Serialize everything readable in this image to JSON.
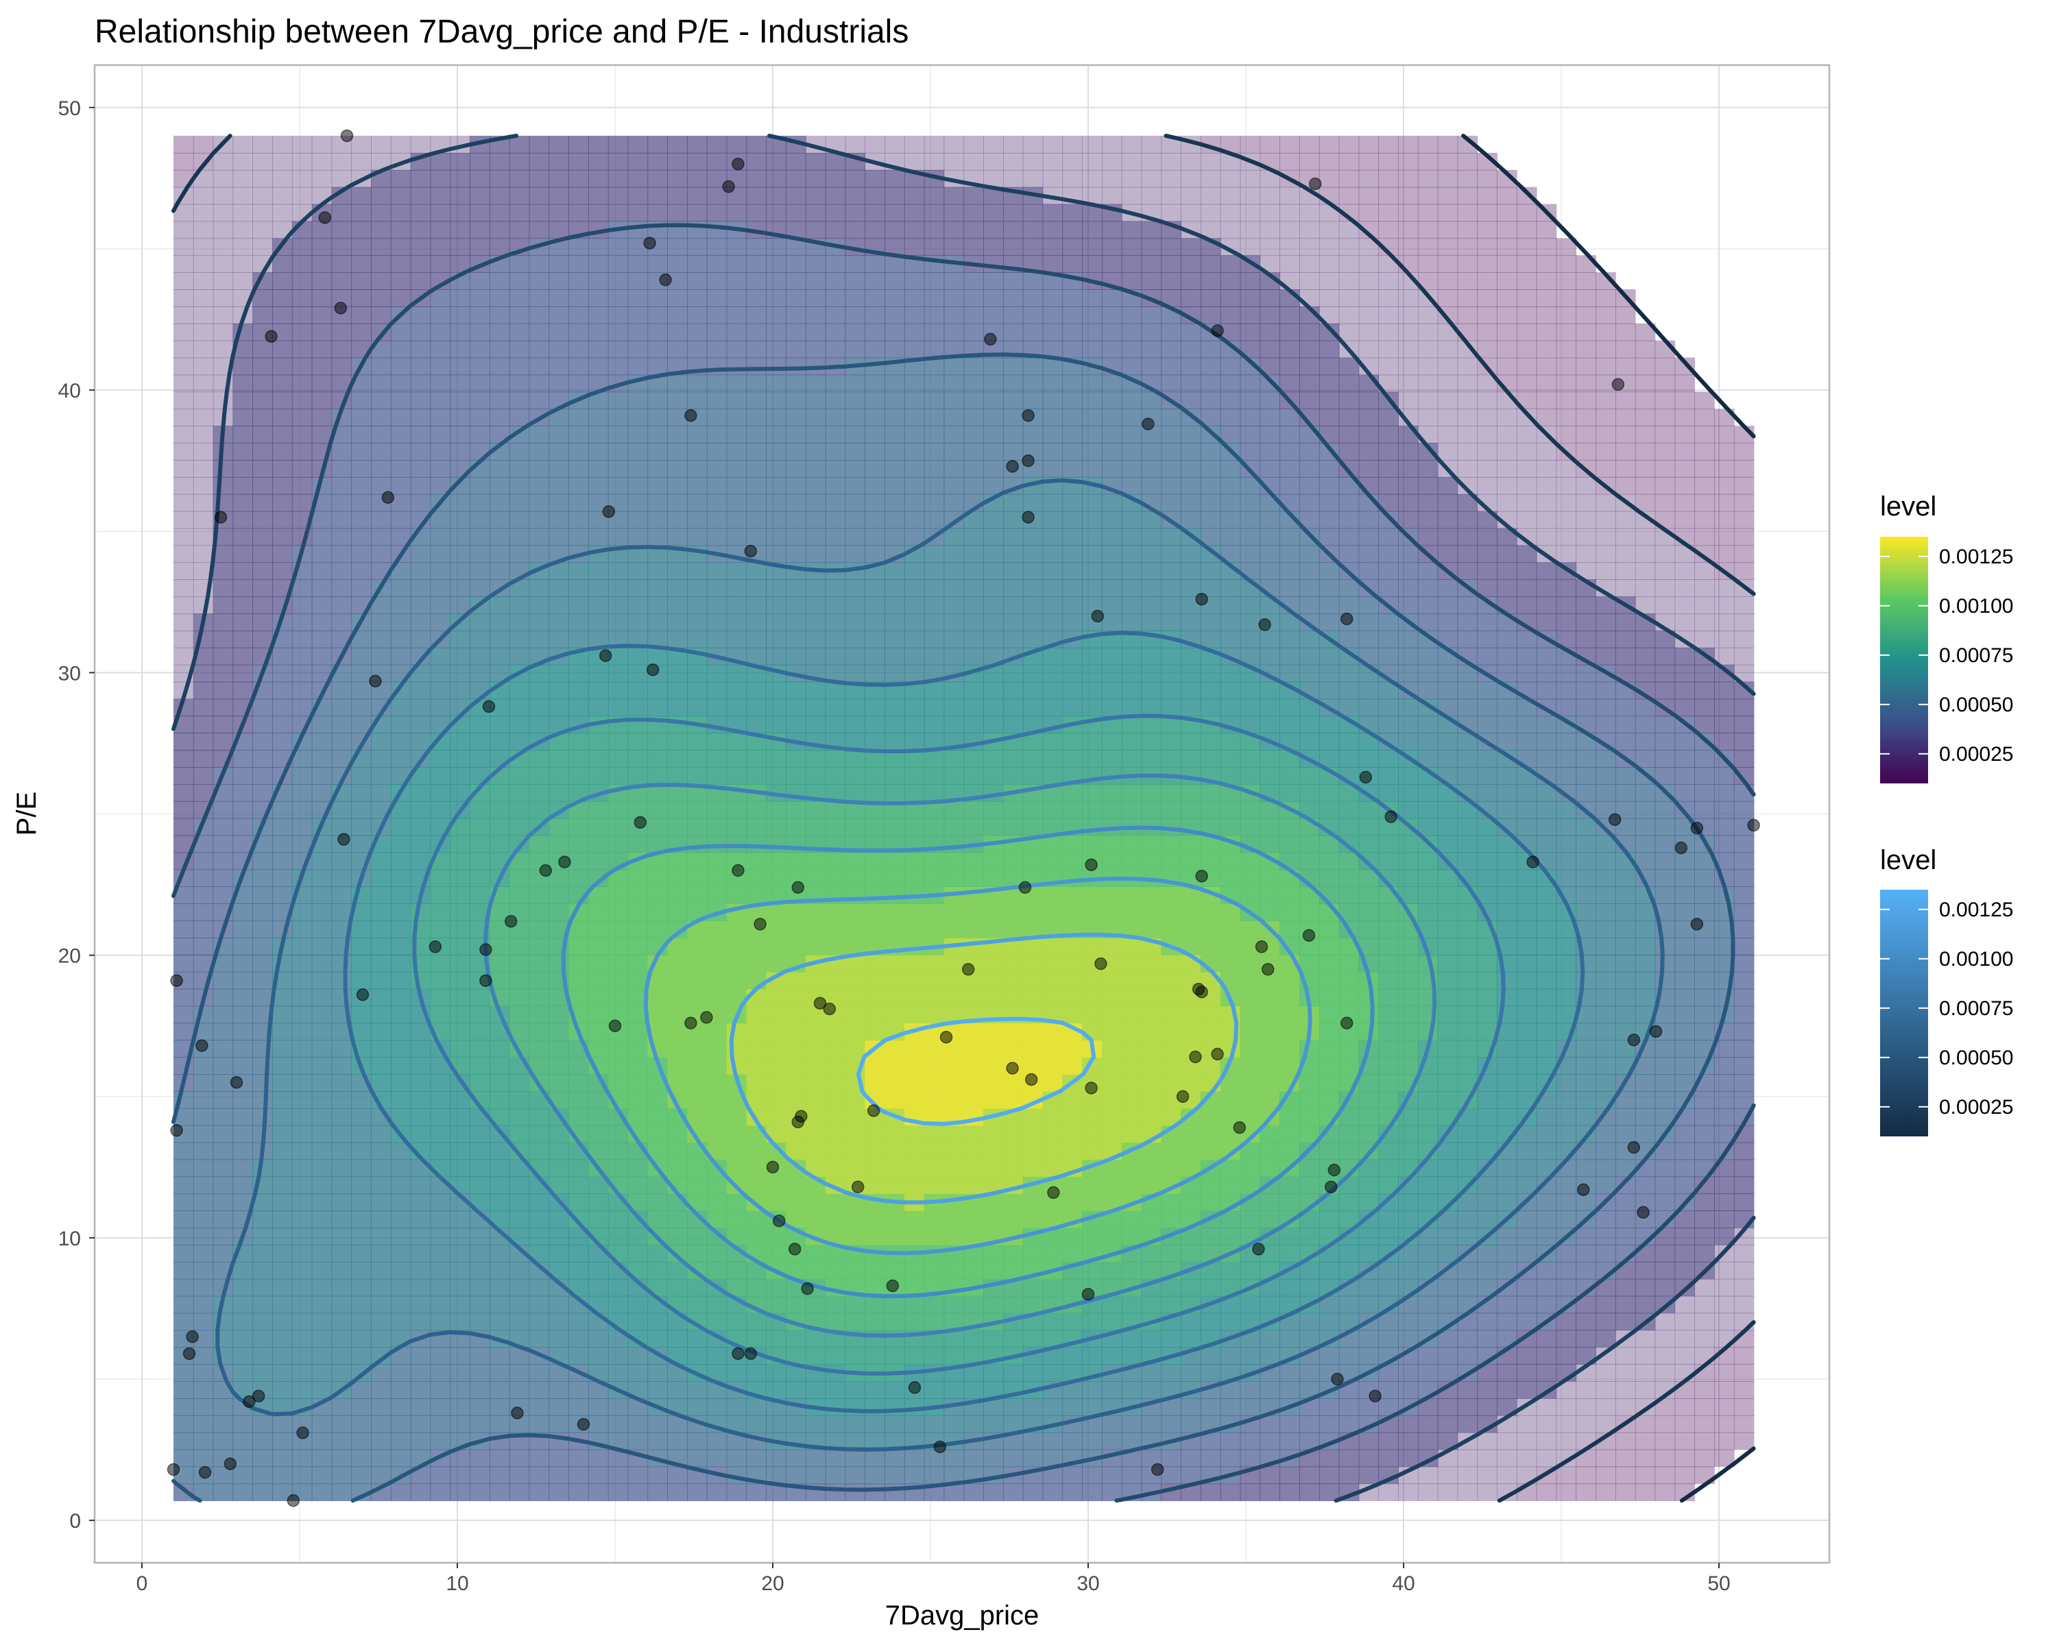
{
  "chart_data": {
    "type": "scatter",
    "subtype": "density-contour",
    "title": "Relationship between 7Davg_price and P/E - Industrials",
    "xlabel": "7Davg_price",
    "ylabel": "P/E",
    "xlim": [
      -1.5,
      53.5
    ],
    "ylim": [
      -1.5,
      51.5
    ],
    "xticks": [
      0,
      10,
      20,
      30,
      40,
      50
    ],
    "yticks": [
      0,
      10,
      20,
      30,
      40,
      50
    ],
    "grid": true,
    "legends": [
      {
        "title": "level",
        "palette": "viridis",
        "colors": [
          "#440154",
          "#3b528b",
          "#21918c",
          "#5ec962",
          "#fde725"
        ],
        "min": 0.0001,
        "max": 0.00135,
        "breaks": [
          0.00125,
          0.001,
          0.00075,
          0.0005,
          0.00025
        ],
        "labels": [
          "0.00125",
          "0.00100",
          "0.00075",
          "0.00050",
          "0.00025"
        ]
      },
      {
        "title": "level",
        "palette": "blues",
        "colors": [
          "#132b43",
          "#56b1f7"
        ],
        "min": 0.0001,
        "max": 0.00135,
        "breaks": [
          0.00125,
          0.001,
          0.00075,
          0.0005,
          0.00025
        ],
        "labels": [
          "0.00125",
          "0.00100",
          "0.00075",
          "0.00050",
          "0.00025"
        ]
      }
    ],
    "points": [
      [
        6.5,
        49
      ],
      [
        18.9,
        48
      ],
      [
        18.6,
        47.2
      ],
      [
        37.2,
        47.3
      ],
      [
        5.8,
        46.1
      ],
      [
        16.1,
        45.2
      ],
      [
        16.6,
        43.9
      ],
      [
        6.3,
        42.9
      ],
      [
        4.1,
        41.9
      ],
      [
        26.9,
        41.8
      ],
      [
        34.1,
        42.1
      ],
      [
        46.8,
        40.2
      ],
      [
        17.4,
        39.1
      ],
      [
        28.1,
        39.1
      ],
      [
        31.9,
        38.8
      ],
      [
        27.6,
        37.3
      ],
      [
        28.1,
        37.5
      ],
      [
        7.8,
        36.2
      ],
      [
        2.5,
        35.5
      ],
      [
        14.8,
        35.7
      ],
      [
        28.1,
        35.5
      ],
      [
        19.3,
        34.3
      ],
      [
        33.6,
        32.6
      ],
      [
        30.3,
        32
      ],
      [
        35.6,
        31.7
      ],
      [
        38.2,
        31.9
      ],
      [
        14.7,
        30.6
      ],
      [
        16.2,
        30.1
      ],
      [
        7.4,
        29.7
      ],
      [
        11.0,
        28.8
      ],
      [
        38.8,
        26.3
      ],
      [
        39.6,
        24.9
      ],
      [
        46.7,
        24.8
      ],
      [
        48.8,
        23.8
      ],
      [
        49.3,
        24.5
      ],
      [
        51.1,
        24.6
      ],
      [
        15.8,
        24.7
      ],
      [
        13.4,
        23.3
      ],
      [
        12.8,
        23
      ],
      [
        6.4,
        24.1
      ],
      [
        18.9,
        23
      ],
      [
        20.8,
        22.4
      ],
      [
        28.0,
        22.4
      ],
      [
        30.1,
        23.2
      ],
      [
        33.6,
        22.8
      ],
      [
        44.1,
        23.3
      ],
      [
        49.3,
        21.1
      ],
      [
        11.7,
        21.2
      ],
      [
        19.6,
        21.1
      ],
      [
        37.0,
        20.7
      ],
      [
        9.3,
        20.3
      ],
      [
        10.9,
        20.2
      ],
      [
        35.5,
        20.3
      ],
      [
        1.1,
        19.1
      ],
      [
        7.0,
        18.6
      ],
      [
        10.9,
        19.1
      ],
      [
        26.2,
        19.5
      ],
      [
        30.4,
        19.7
      ],
      [
        35.7,
        19.5
      ],
      [
        21.5,
        18.3
      ],
      [
        21.8,
        18.1
      ],
      [
        33.5,
        18.8
      ],
      [
        33.6,
        18.7
      ],
      [
        17.4,
        17.6
      ],
      [
        17.9,
        17.8
      ],
      [
        15.0,
        17.5
      ],
      [
        38.2,
        17.6
      ],
      [
        1.9,
        16.8
      ],
      [
        25.5,
        17.1
      ],
      [
        34.1,
        16.5
      ],
      [
        33.4,
        16.4
      ],
      [
        47.3,
        17.0
      ],
      [
        48.0,
        17.3
      ],
      [
        27.6,
        16.0
      ],
      [
        28.2,
        15.6
      ],
      [
        3.0,
        15.5
      ],
      [
        30.1,
        15.3
      ],
      [
        33.0,
        15.0
      ],
      [
        23.2,
        14.5
      ],
      [
        20.9,
        14.3
      ],
      [
        20.8,
        14.1
      ],
      [
        1.1,
        13.8
      ],
      [
        34.8,
        13.9
      ],
      [
        47.3,
        13.2
      ],
      [
        20.0,
        12.5
      ],
      [
        37.8,
        12.4
      ],
      [
        22.7,
        11.8
      ],
      [
        37.7,
        11.8
      ],
      [
        45.7,
        11.7
      ],
      [
        28.9,
        11.6
      ],
      [
        47.6,
        10.9
      ],
      [
        20.2,
        10.6
      ],
      [
        20.7,
        9.6
      ],
      [
        35.4,
        9.6
      ],
      [
        23.8,
        8.3
      ],
      [
        21.1,
        8.2
      ],
      [
        30.0,
        8.0
      ],
      [
        1.6,
        6.5
      ],
      [
        1.5,
        5.9
      ],
      [
        18.9,
        5.9
      ],
      [
        19.3,
        5.9
      ],
      [
        24.5,
        4.7
      ],
      [
        37.9,
        5.0
      ],
      [
        39.1,
        4.4
      ],
      [
        3.4,
        4.2
      ],
      [
        3.7,
        4.4
      ],
      [
        11.9,
        3.8
      ],
      [
        5.1,
        3.1
      ],
      [
        14.0,
        3.4
      ],
      [
        25.3,
        2.6
      ],
      [
        2.8,
        2.0
      ],
      [
        1.0,
        1.8
      ],
      [
        2.0,
        1.7
      ],
      [
        32.2,
        1.8
      ],
      [
        4.8,
        0.7
      ]
    ],
    "levels": [
      0.0001,
      0.0002,
      0.0003,
      0.0004,
      0.0005,
      0.0006,
      0.0007,
      0.0008,
      0.0009,
      0.001,
      0.0011,
      0.0012,
      0.0013
    ]
  }
}
